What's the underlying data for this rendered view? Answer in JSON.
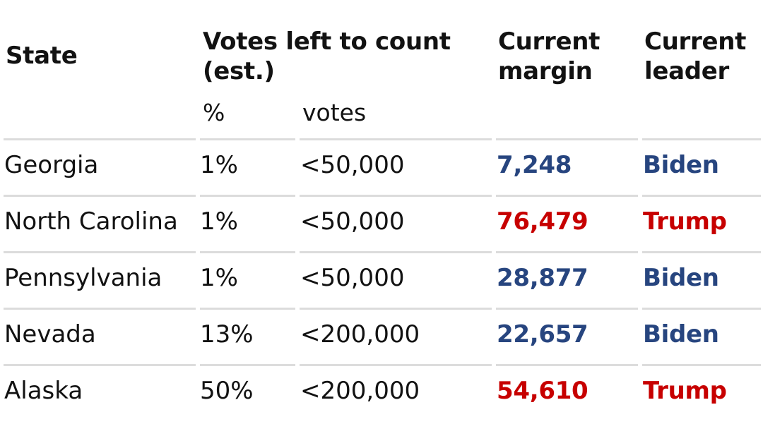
{
  "header": {
    "state": "State",
    "votes_left": "Votes left to count (est.)",
    "votes_left_line1": "Votes left to count",
    "votes_left_line2": "(est.)",
    "current_margin_line1": "Current",
    "current_margin_line2": "margin",
    "current_leader_line1": "Current",
    "current_leader_line2": "leader",
    "sub_pct": "%",
    "sub_votes": "votes"
  },
  "colors": {
    "biden": "#27457f",
    "trump": "#c70000",
    "rule": "#dcdcdc"
  },
  "rows": [
    {
      "state": "Georgia",
      "pct": "1%",
      "votes": "<50,000",
      "margin": "7,248",
      "leader": "Biden",
      "party": "dem"
    },
    {
      "state": "North Carolina",
      "pct": "1%",
      "votes": "<50,000",
      "margin": "76,479",
      "leader": "Trump",
      "party": "rep"
    },
    {
      "state": "Pennsylvania",
      "pct": "1%",
      "votes": "<50,000",
      "margin": "28,877",
      "leader": "Biden",
      "party": "dem"
    },
    {
      "state": "Nevada",
      "pct": "13%",
      "votes": "<200,000",
      "margin": "22,657",
      "leader": "Biden",
      "party": "dem"
    },
    {
      "state": "Alaska",
      "pct": "50%",
      "votes": "<200,000",
      "margin": "54,610",
      "leader": "Trump",
      "party": "rep"
    }
  ]
}
